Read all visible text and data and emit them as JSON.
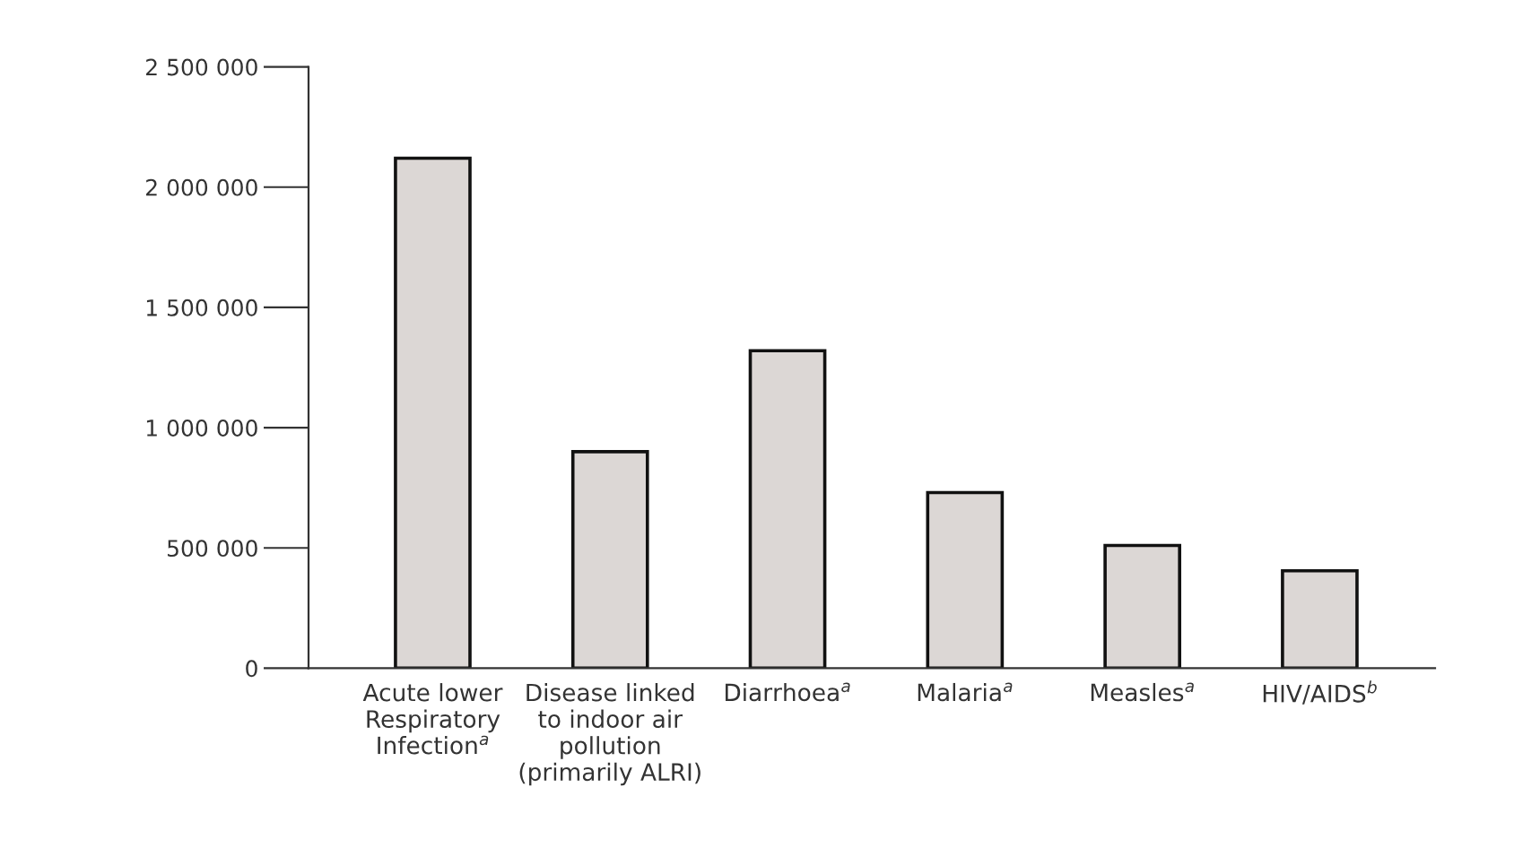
{
  "chart_data": {
    "type": "bar",
    "categories": [
      "Acute lower\nRespiratory\nInfection$^{a}$",
      "Disease linked\nto indoor air\npollution\n(primarily ALRI)",
      "Diarrhoea$^{a}$",
      "Malaria$^{a}$",
      "Measles$^{a}$",
      "HIV/AIDS$^{b}$"
    ],
    "values": [
      2120000,
      900000,
      1320000,
      730000,
      510000,
      405000
    ],
    "color": "#dcd7d5",
    "ylim": [
      0,
      2500000
    ],
    "yticks": [
      0,
      {
        "value": 500000,
        "label": "500 000"
      },
      {
        "value": 1000000,
        "label": "1 000 000"
      },
      {
        "value": 1500000,
        "label": "1 500 000"
      },
      {
        "value": 2000000,
        "label": "2 000 000"
      },
      {
        "value": 2500000,
        "label": "2 500 000"
      }
    ],
    "grid": false
  }
}
